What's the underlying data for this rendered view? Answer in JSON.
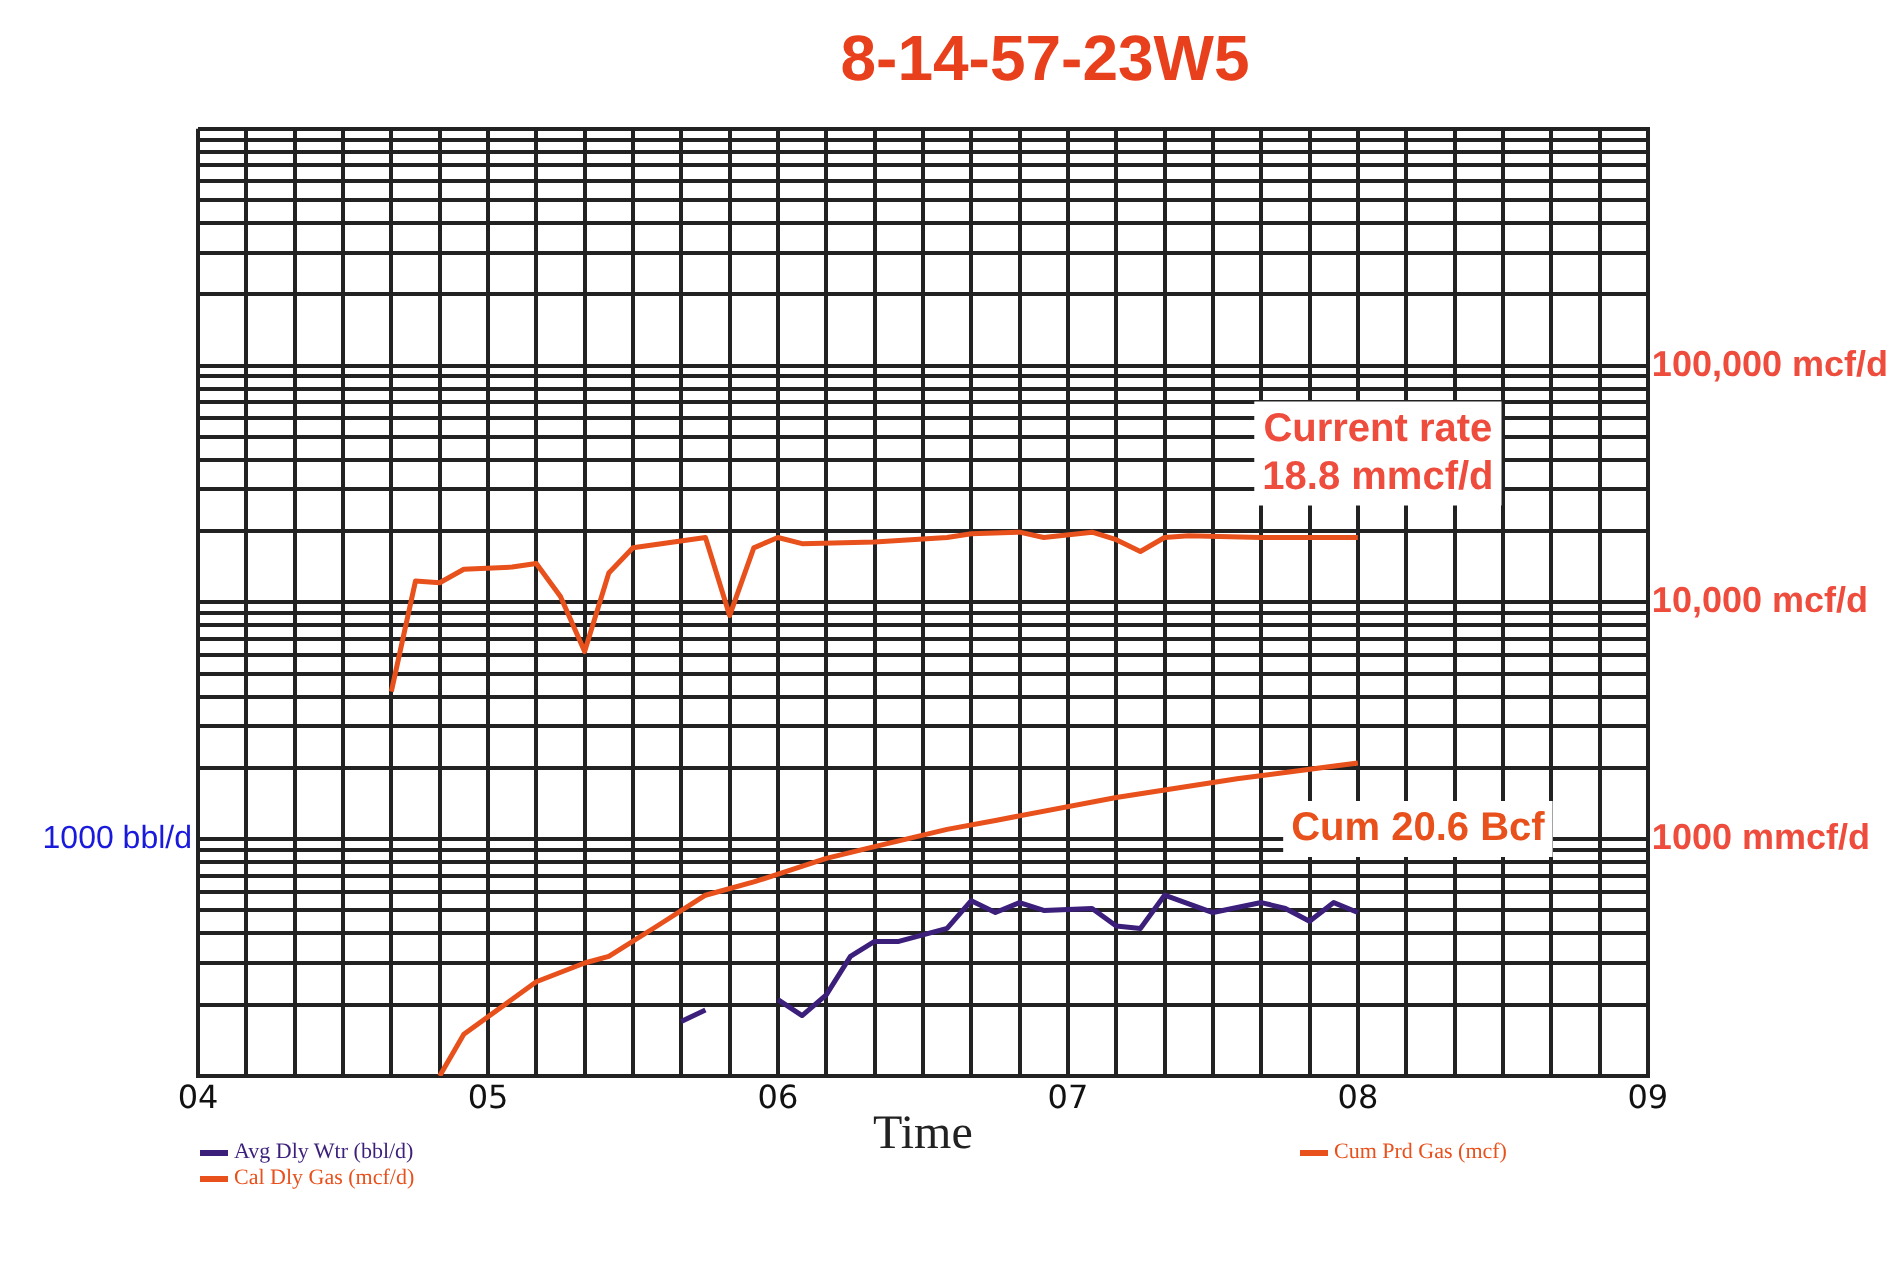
{
  "chart_data": {
    "type": "line",
    "title": "8-14-57-23W5",
    "xlabel": "Time",
    "xlim": [
      "2004",
      "2009"
    ],
    "xticks": [
      {
        "value": "2004",
        "label": "04"
      },
      {
        "value": "2004-03",
        "label": null
      },
      {
        "value": "2004-05",
        "label": null
      },
      {
        "value": "2004-07",
        "label": null
      },
      {
        "value": "2004-09",
        "label": null
      },
      {
        "value": "2004-11",
        "label": null
      },
      {
        "value": "2005",
        "label": "05"
      },
      {
        "value": "2005-03",
        "label": null
      },
      {
        "value": "2005-05",
        "label": null
      },
      {
        "value": "2005-07",
        "label": null
      },
      {
        "value": "2005-09",
        "label": null
      },
      {
        "value": "2005-11",
        "label": null
      },
      {
        "value": "2006",
        "label": "06"
      },
      {
        "value": "2006-03",
        "label": null
      },
      {
        "value": "2006-05",
        "label": null
      },
      {
        "value": "2006-07",
        "label": null
      },
      {
        "value": "2006-09",
        "label": null
      },
      {
        "value": "2006-11",
        "label": null
      },
      {
        "value": "2007",
        "label": "07"
      },
      {
        "value": "2007-03",
        "label": null
      },
      {
        "value": "2007-05",
        "label": null
      },
      {
        "value": "2007-07",
        "label": null
      },
      {
        "value": "2007-09",
        "label": null
      },
      {
        "value": "2007-11",
        "label": null
      },
      {
        "value": "2008",
        "label": "08"
      },
      {
        "value": "2008-03",
        "label": null
      },
      {
        "value": "2008-05",
        "label": null
      },
      {
        "value": "2008-07",
        "label": null
      },
      {
        "value": "2008-09",
        "label": null
      },
      {
        "value": "2008-11",
        "label": null
      },
      {
        "value": "2009",
        "label": "09"
      }
    ],
    "ylim": [
      100,
      1000000
    ],
    "log": "y",
    "yticks": [
      {
        "value": 100,
        "label": null
      },
      {
        "value": 200,
        "label": null
      },
      {
        "value": 300,
        "label": null
      },
      {
        "value": 400,
        "label": null
      },
      {
        "value": 500,
        "label": null
      },
      {
        "value": 600,
        "label": null
      },
      {
        "value": 700,
        "label": null
      },
      {
        "value": 800,
        "label": null
      },
      {
        "value": 900,
        "label": null
      },
      {
        "value": 1000,
        "label": "1000 mmcf/d"
      },
      {
        "value": 2000,
        "label": null
      },
      {
        "value": 3000,
        "label": null
      },
      {
        "value": 4000,
        "label": null
      },
      {
        "value": 5000,
        "label": null
      },
      {
        "value": 6000,
        "label": null
      },
      {
        "value": 7000,
        "label": null
      },
      {
        "value": 8000,
        "label": null
      },
      {
        "value": 9000,
        "label": null
      },
      {
        "value": 10000,
        "label": "10,000 mcf/d"
      },
      {
        "value": 20000,
        "label": null
      },
      {
        "value": 30000,
        "label": null
      },
      {
        "value": 40000,
        "label": null
      },
      {
        "value": 50000,
        "label": null
      },
      {
        "value": 60000,
        "label": null
      },
      {
        "value": 70000,
        "label": null
      },
      {
        "value": 80000,
        "label": null
      },
      {
        "value": 90000,
        "label": null
      },
      {
        "value": 100000,
        "label": "100,000 mcf/d"
      },
      {
        "value": 200000,
        "label": null
      },
      {
        "value": 300000,
        "label": null
      },
      {
        "value": 400000,
        "label": null
      },
      {
        "value": 500000,
        "label": null
      },
      {
        "value": 600000,
        "label": null
      },
      {
        "value": 700000,
        "label": null
      },
      {
        "value": 800000,
        "label": null
      },
      {
        "value": 900000,
        "label": null
      },
      {
        "value": 1000000,
        "label": null
      }
    ],
    "grid": true,
    "legend": "bottom",
    "series": [
      {
        "name": "Avg Dly Wtr (bbl/d)",
        "color": "#3b1f7a",
        "x": [
          "2005-09",
          "2005-10",
          "2005-11",
          "2005-12",
          "2006-01",
          "2006-02",
          "2006-03",
          "2006-04",
          "2006-05",
          "2006-06",
          "2006-08",
          "2006-09",
          "2006-10",
          "2006-11",
          "2006-12",
          "2007-02",
          "2007-03",
          "2007-04",
          "2007-05",
          "2007-07",
          "2007-09",
          "2007-10",
          "2007-11",
          "2007-12",
          "2008-01"
        ],
        "values": [
          170,
          190,
          null,
          null,
          210,
          180,
          220,
          320,
          370,
          370,
          420,
          550,
          490,
          540,
          500,
          510,
          430,
          420,
          580,
          490,
          540,
          510,
          450,
          540,
          490
        ]
      },
      {
        "name": "Cal Dly Gas (mcf/d)",
        "color": "#e8501c",
        "x": [
          "2004-09",
          "2004-10",
          "2004-11",
          "2004-12",
          "2005-02",
          "2005-03",
          "2005-04",
          "2005-05",
          "2005-06",
          "2005-07",
          "2005-10",
          "2005-11",
          "2005-12",
          "2006-01",
          "2006-02",
          "2006-05",
          "2006-08",
          "2006-09",
          "2006-11",
          "2006-12",
          "2007-02",
          "2007-03",
          "2007-04",
          "2007-05",
          "2007-06",
          "2007-09",
          "2007-10",
          "2008-01"
        ],
        "values": [
          4200,
          12300,
          12100,
          13800,
          14100,
          14600,
          10600,
          6200,
          13300,
          17000,
          18800,
          8800,
          17000,
          18800,
          17700,
          18000,
          18800,
          19500,
          19800,
          18800,
          19800,
          18400,
          16400,
          18800,
          19100,
          18800,
          18800,
          18800
        ]
      },
      {
        "name": "Cum Prd Gas (mcf)",
        "color": "#e8501c",
        "x": [
          "2004-11",
          "2004-12",
          "2005-03",
          "2005-05",
          "2005-06",
          "2005-08",
          "2005-10",
          "2005-12",
          "2006-03",
          "2006-05",
          "2006-08",
          "2006-10",
          "2007-03",
          "2007-08",
          "2008-01"
        ],
        "values": [
          100,
          150,
          250,
          300,
          320,
          430,
          580,
          660,
          830,
          930,
          1100,
          1200,
          1500,
          1800,
          2100
        ]
      }
    ],
    "annotations": [
      "1000 bbl/d",
      "Current rate\n18.8 mmcf/d",
      "Cum 20.6 Bcf"
    ]
  }
}
